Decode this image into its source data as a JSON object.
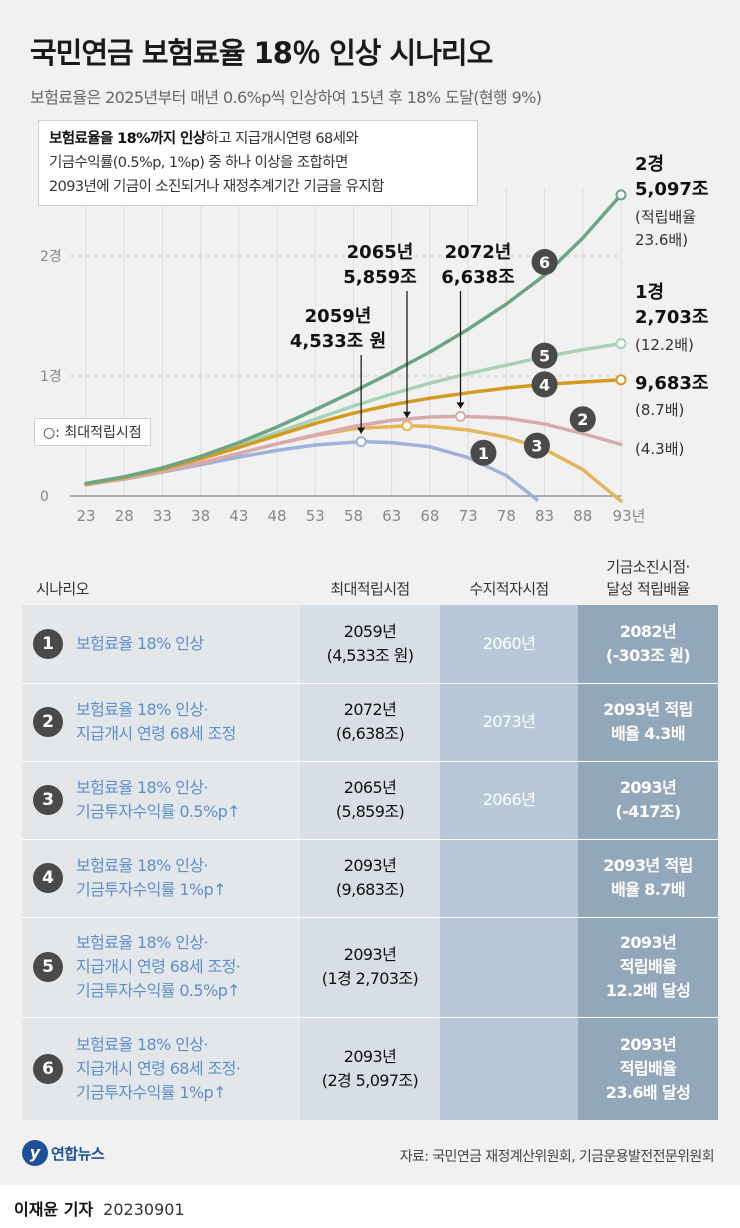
{
  "title": "국민연금 보험료율 18％ 인상 시나리오",
  "subtitle": "보험료율은 2025년부터 매년 0.6%p씩 인상하여 15년 후 18% 도달(현행 9%)",
  "note": {
    "line1_bold": "보험료율을 18%까지 인상",
    "line1_rest": "하고 지급개시연령 68세와",
    "line2": "기금수익률(0.5%p, 1%p) 중 하나 이상을 조합하면",
    "line3": "2093년에 기금이 소진되거나 재정추계기간 기금을 유지함"
  },
  "legend_label": "○: 최대적립시점",
  "chart_data": {
    "type": "line",
    "title": "",
    "xlabel": "",
    "ylabel": "",
    "x_ticks": [
      "23",
      "28",
      "33",
      "38",
      "43",
      "48",
      "53",
      "58",
      "63",
      "68",
      "73",
      "78",
      "83",
      "88",
      "93년"
    ],
    "x_values": [
      2023,
      2028,
      2033,
      2038,
      2043,
      2048,
      2053,
      2058,
      2063,
      2068,
      2073,
      2078,
      2083,
      2088,
      2093
    ],
    "y_ticks": [
      "0",
      "1경",
      "2경"
    ],
    "y_tick_values": [
      0,
      10000,
      20000
    ],
    "xlim": [
      2022,
      2095
    ],
    "ylim": [
      -300,
      26000
    ],
    "unit": "조 원",
    "colors": {
      "s1": "#9db2d8",
      "s2": "#d8a9ad",
      "s3": "#e5b55b",
      "s4": "#d39a1f",
      "s5": "#a8d2b6",
      "s6": "#6ba583"
    },
    "series": [
      {
        "id": "1",
        "color": "#9db2d8",
        "x": [
          2023,
          2028,
          2033,
          2038,
          2043,
          2048,
          2053,
          2059,
          2063,
          2068,
          2073,
          2078,
          2082
        ],
        "y": [
          950,
          1400,
          2000,
          2600,
          3250,
          3800,
          4250,
          4533,
          4450,
          4100,
          3200,
          1700,
          -303
        ],
        "peak": [
          2059,
          4533
        ]
      },
      {
        "id": "2",
        "color": "#d8a9ad",
        "x": [
          2023,
          2028,
          2033,
          2038,
          2043,
          2048,
          2053,
          2058,
          2063,
          2068,
          2072,
          2078,
          2083,
          2088,
          2093
        ],
        "y": [
          950,
          1450,
          2050,
          2750,
          3550,
          4350,
          5100,
          5800,
          6300,
          6580,
          6638,
          6500,
          6000,
          5200,
          4300
        ],
        "peak": [
          2072,
          6638
        ]
      },
      {
        "id": "3",
        "color": "#e5b55b",
        "x": [
          2023,
          2028,
          2033,
          2038,
          2043,
          2048,
          2053,
          2058,
          2065,
          2068,
          2073,
          2078,
          2083,
          2088,
          2093
        ],
        "y": [
          950,
          1450,
          2050,
          2750,
          3550,
          4350,
          5050,
          5600,
          5859,
          5800,
          5500,
          4900,
          3900,
          2200,
          -417
        ],
        "peak": [
          2065,
          5859
        ]
      },
      {
        "id": "4",
        "color": "#d39a1f",
        "x": [
          2023,
          2028,
          2033,
          2038,
          2043,
          2048,
          2053,
          2058,
          2063,
          2068,
          2073,
          2078,
          2083,
          2088,
          2093
        ],
        "y": [
          1000,
          1550,
          2250,
          3100,
          4050,
          5050,
          6050,
          6900,
          7600,
          8150,
          8600,
          9000,
          9300,
          9500,
          9683
        ],
        "peak": [
          2093,
          9683
        ]
      },
      {
        "id": "5",
        "color": "#a8d2b6",
        "x": [
          2023,
          2028,
          2033,
          2038,
          2043,
          2048,
          2053,
          2058,
          2063,
          2068,
          2073,
          2078,
          2083,
          2088,
          2093
        ],
        "y": [
          1000,
          1550,
          2250,
          3150,
          4200,
          5300,
          6400,
          7500,
          8500,
          9400,
          10200,
          10900,
          11600,
          12200,
          12703
        ],
        "peak": [
          2093,
          12703
        ]
      },
      {
        "id": "6",
        "color": "#6ba583",
        "x": [
          2023,
          2028,
          2033,
          2038,
          2043,
          2048,
          2053,
          2058,
          2063,
          2068,
          2073,
          2078,
          2083,
          2088,
          2093
        ],
        "y": [
          1050,
          1600,
          2350,
          3300,
          4450,
          5750,
          7200,
          8700,
          10300,
          12000,
          13900,
          16000,
          18400,
          21500,
          25097
        ],
        "peak": [
          2093,
          25097
        ]
      }
    ],
    "annotations": [
      {
        "lines": [
          "2059년",
          "4,533조 원"
        ],
        "x": 2059,
        "y": 4533
      },
      {
        "lines": [
          "2065년",
          "5,859조"
        ],
        "x": 2065,
        "y": 5859
      },
      {
        "lines": [
          "2072년",
          "6,638조"
        ],
        "x": 2072,
        "y": 6638
      }
    ],
    "end_labels": [
      {
        "lines": [
          "2경",
          "5,097조"
        ],
        "sub": [
          "(적립배율",
          "23.6배)"
        ]
      },
      {
        "lines": [
          "1경",
          "2,703조"
        ],
        "sub": [
          "(12.2배)"
        ]
      },
      {
        "lines": [
          "9,683조"
        ],
        "sub": [
          "(8.7배)"
        ]
      },
      {
        "lines": [],
        "sub": [
          "(4.3배)"
        ]
      }
    ]
  },
  "table": {
    "headers": {
      "scenario": "시나리오",
      "peak": "최대적립시점",
      "deficit": "수지적자시점",
      "depletion_1": "기금소진시점·",
      "depletion_2": "달성 적립배율"
    },
    "rows": [
      {
        "num": "1",
        "name": [
          "보험료율 18% 인상"
        ],
        "peak": [
          "2059년",
          "(4,533조 원)"
        ],
        "deficit": "2060년",
        "depletion": [
          "2082년",
          "(-303조 원)"
        ]
      },
      {
        "num": "2",
        "name": [
          "보험료율 18% 인상·",
          "지급개시 연령 68세 조정"
        ],
        "peak": [
          "2072년",
          "(6,638조)"
        ],
        "deficit": "2073년",
        "depletion": [
          "2093년 적립",
          "배율 4.3배"
        ]
      },
      {
        "num": "3",
        "name": [
          "보험료율 18% 인상·",
          "기금투자수익률 0.5%p↑"
        ],
        "peak": [
          "2065년",
          "(5,859조)"
        ],
        "deficit": "2066년",
        "depletion": [
          "2093년",
          "(-417조)"
        ]
      },
      {
        "num": "4",
        "name": [
          "보험료율 18% 인상·",
          "기금투자수익률 1%p↑"
        ],
        "peak": [
          "2093년",
          "(9,683조)"
        ],
        "deficit": "",
        "depletion": [
          "2093년 적립",
          "배율 8.7배"
        ]
      },
      {
        "num": "5",
        "name": [
          "보험료율 18% 인상·",
          "지급개시 연령 68세 조정·",
          "기금투자수익률 0.5%p↑"
        ],
        "peak": [
          "2093년",
          "(1경 2,703조)"
        ],
        "deficit": "",
        "depletion": [
          "2093년",
          "적립배율",
          "12.2배 달성"
        ]
      },
      {
        "num": "6",
        "name": [
          "보험료율 18% 인상·",
          "지급개시 연령 68세 조정·",
          "기금투자수익률 1%p↑"
        ],
        "peak": [
          "2093년",
          "(2경 5,097조)"
        ],
        "deficit": "",
        "depletion": [
          "2093년",
          "적립배율",
          "23.6배 달성"
        ]
      }
    ]
  },
  "logo_text": "연합뉴스",
  "logo_mark": "y",
  "source": "자료: 국민연금 재정계산위원회, 기금운용발전전문위원회",
  "credit": {
    "reporter": "이재윤 기자",
    "date": "20230901"
  }
}
